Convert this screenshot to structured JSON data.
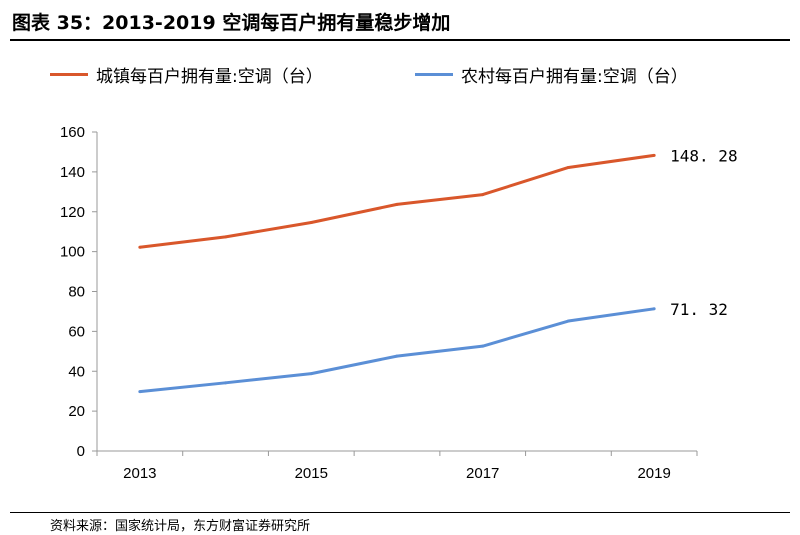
{
  "figure": {
    "title": "图表 35：2013-2019 空调每百户拥有量稳步增加",
    "source": "资料来源：国家统计局，东方财富证券研究所"
  },
  "chart_data": {
    "type": "line",
    "title": "",
    "xlabel": "",
    "ylabel": "",
    "x": [
      2013,
      2014,
      2015,
      2016,
      2017,
      2018,
      2019
    ],
    "x_tick_labels": [
      "2013",
      "2015",
      "2017",
      "2019"
    ],
    "y_tick_labels": [
      "0",
      "20",
      "40",
      "60",
      "80",
      "100",
      "120",
      "140",
      "160"
    ],
    "ylim": [
      0,
      160
    ],
    "grid": false,
    "legend_position": "top",
    "series": [
      {
        "name": "城镇每百户拥有量:空调（台）",
        "color": "#d9572b",
        "values": [
          102.2,
          107.4,
          114.6,
          123.7,
          128.6,
          142.2,
          148.28
        ],
        "end_label": "148. 28"
      },
      {
        "name": "农村每百户拥有量:空调（台）",
        "color": "#5b8fd6",
        "values": [
          29.8,
          34.2,
          38.8,
          47.6,
          52.6,
          65.2,
          71.32
        ],
        "end_label": "71. 32"
      }
    ]
  }
}
